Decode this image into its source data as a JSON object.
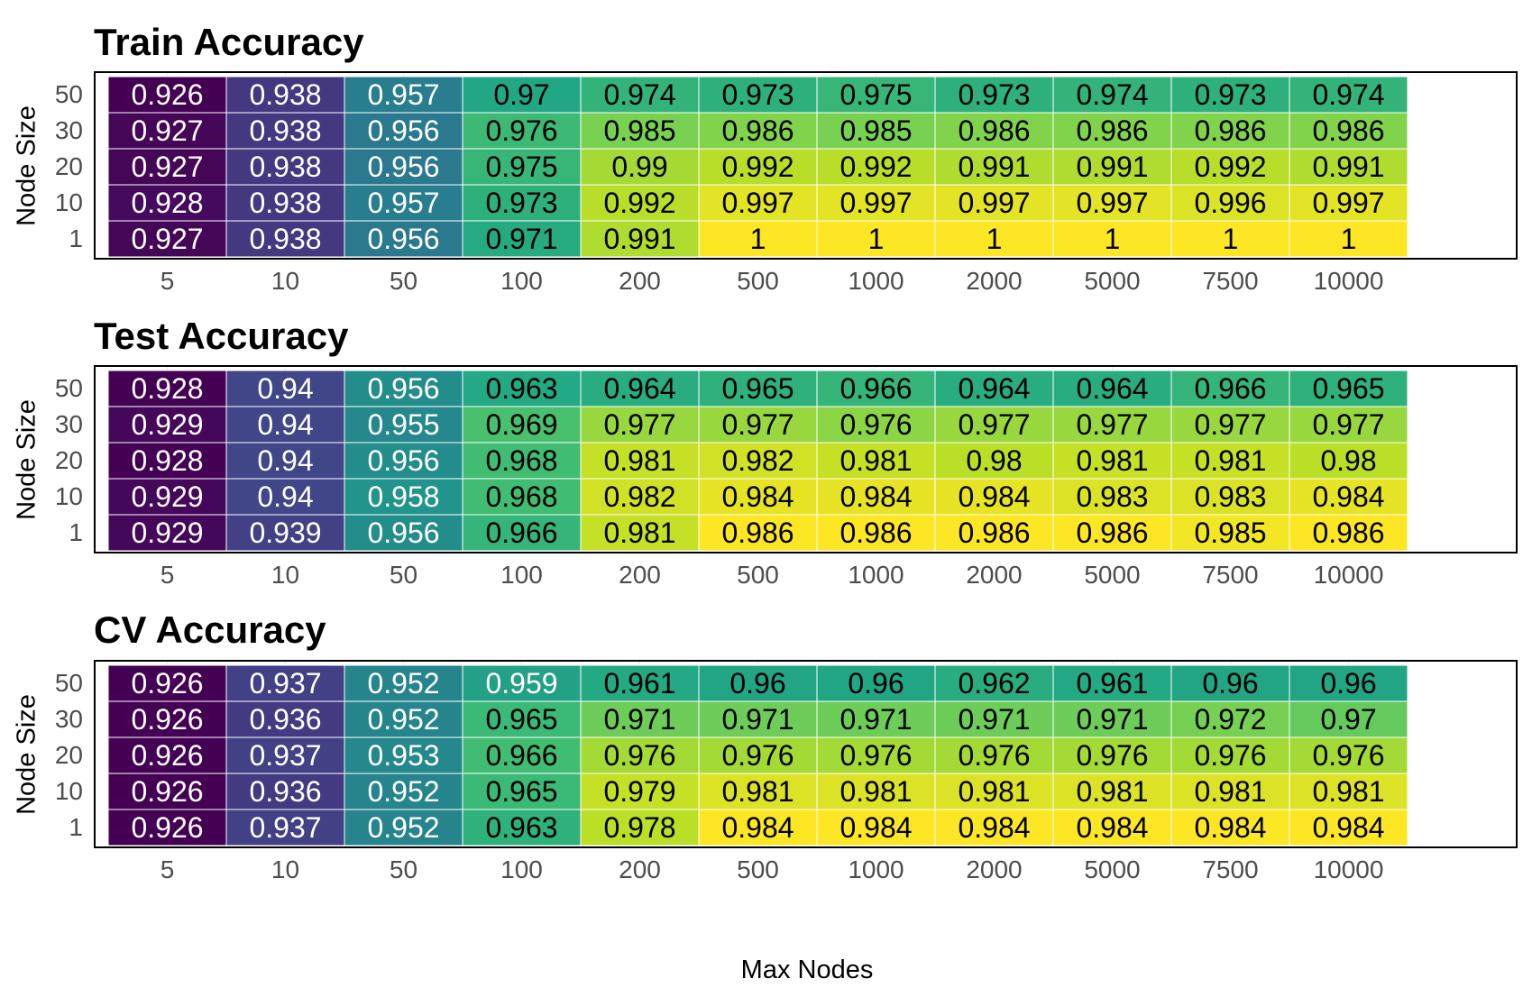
{
  "chart_data": {
    "type": "heatmap",
    "xlabel": "Max Nodes",
    "ylabel": "Node Size",
    "x_categories": [
      "5",
      "10",
      "50",
      "100",
      "200",
      "500",
      "1000",
      "2000",
      "5000",
      "7500",
      "10000"
    ],
    "y_categories": [
      "50",
      "30",
      "20",
      "10",
      "1"
    ],
    "colormap": "viridis",
    "panels": [
      {
        "title": "Train Accuracy",
        "values": [
          [
            "0.926",
            "0.938",
            "0.957",
            "0.97",
            "0.974",
            "0.973",
            "0.975",
            "0.973",
            "0.974",
            "0.973",
            "0.974"
          ],
          [
            "0.927",
            "0.938",
            "0.956",
            "0.976",
            "0.985",
            "0.986",
            "0.985",
            "0.986",
            "0.986",
            "0.986",
            "0.986"
          ],
          [
            "0.927",
            "0.938",
            "0.956",
            "0.975",
            "0.99",
            "0.992",
            "0.992",
            "0.991",
            "0.991",
            "0.992",
            "0.991"
          ],
          [
            "0.928",
            "0.938",
            "0.957",
            "0.973",
            "0.992",
            "0.997",
            "0.997",
            "0.997",
            "0.997",
            "0.996",
            "0.997"
          ],
          [
            "0.927",
            "0.938",
            "0.956",
            "0.971",
            "0.991",
            "1",
            "1",
            "1",
            "1",
            "1",
            "1"
          ]
        ]
      },
      {
        "title": "Test Accuracy",
        "values": [
          [
            "0.928",
            "0.94",
            "0.956",
            "0.963",
            "0.964",
            "0.965",
            "0.966",
            "0.964",
            "0.964",
            "0.966",
            "0.965"
          ],
          [
            "0.929",
            "0.94",
            "0.955",
            "0.969",
            "0.977",
            "0.977",
            "0.976",
            "0.977",
            "0.977",
            "0.977",
            "0.977"
          ],
          [
            "0.928",
            "0.94",
            "0.956",
            "0.968",
            "0.981",
            "0.982",
            "0.981",
            "0.98",
            "0.981",
            "0.981",
            "0.98"
          ],
          [
            "0.929",
            "0.94",
            "0.958",
            "0.968",
            "0.982",
            "0.984",
            "0.984",
            "0.984",
            "0.983",
            "0.983",
            "0.984"
          ],
          [
            "0.929",
            "0.939",
            "0.956",
            "0.966",
            "0.981",
            "0.986",
            "0.986",
            "0.986",
            "0.986",
            "0.985",
            "0.986"
          ]
        ]
      },
      {
        "title": "CV Accuracy",
        "values": [
          [
            "0.926",
            "0.937",
            "0.952",
            "0.959",
            "0.961",
            "0.96",
            "0.96",
            "0.962",
            "0.961",
            "0.96",
            "0.96"
          ],
          [
            "0.926",
            "0.936",
            "0.952",
            "0.965",
            "0.971",
            "0.971",
            "0.971",
            "0.971",
            "0.971",
            "0.972",
            "0.97"
          ],
          [
            "0.926",
            "0.937",
            "0.953",
            "0.966",
            "0.976",
            "0.976",
            "0.976",
            "0.976",
            "0.976",
            "0.976",
            "0.976"
          ],
          [
            "0.926",
            "0.936",
            "0.952",
            "0.965",
            "0.979",
            "0.981",
            "0.981",
            "0.981",
            "0.981",
            "0.981",
            "0.981"
          ],
          [
            "0.926",
            "0.937",
            "0.952",
            "0.963",
            "0.978",
            "0.984",
            "0.984",
            "0.984",
            "0.984",
            "0.984",
            "0.984"
          ]
        ]
      }
    ]
  }
}
